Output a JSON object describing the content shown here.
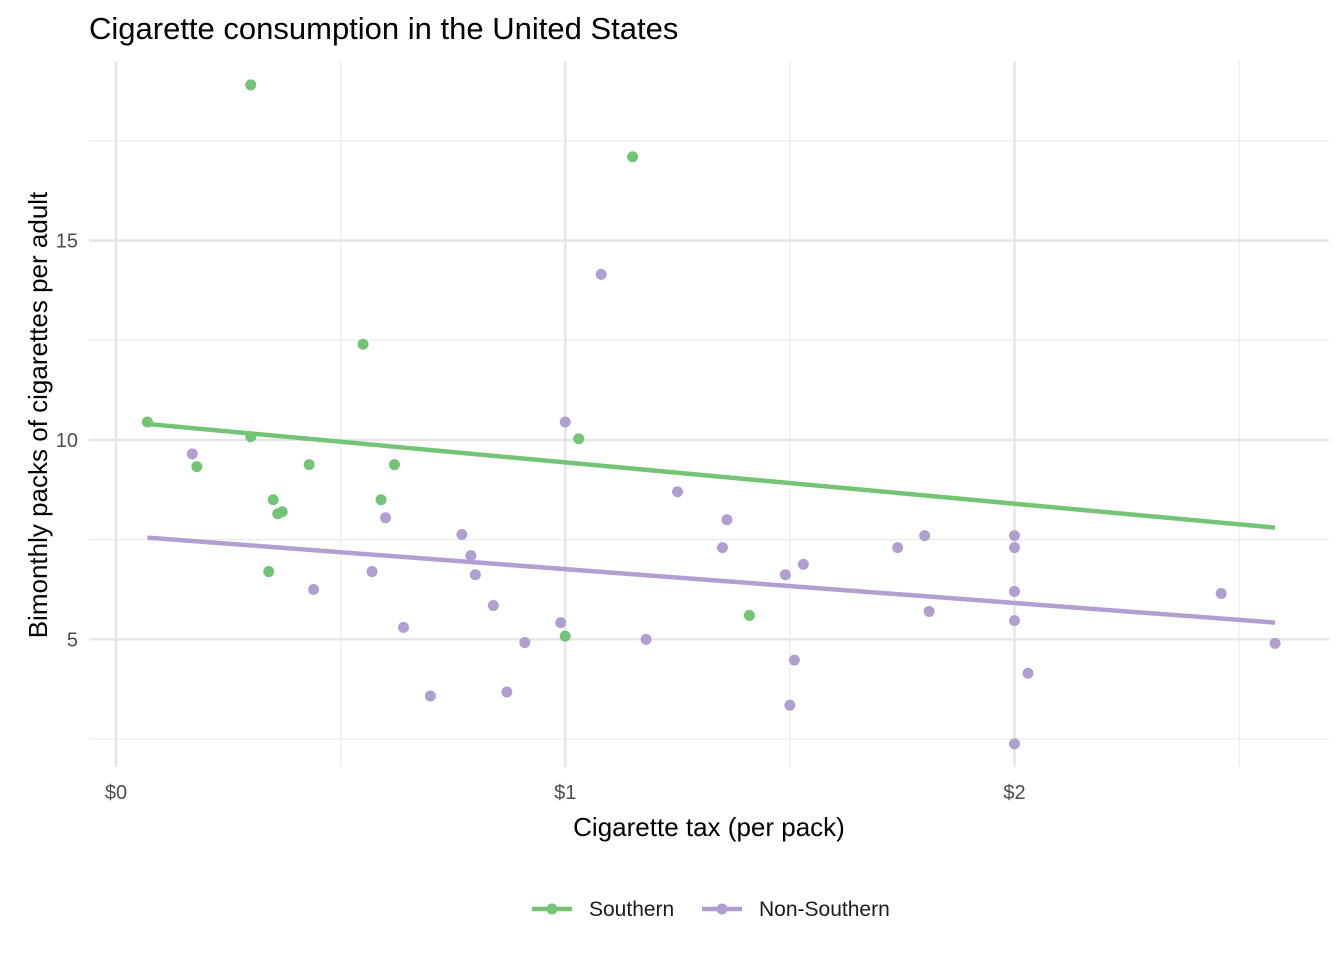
{
  "chart_data": {
    "type": "scatter",
    "title": "Cigarette consumption in the United States",
    "xlabel": "Cigarette tax (per pack)",
    "ylabel": "Bimonthly packs of cigarettes per adult",
    "xlim": [
      -0.06,
      2.7
    ],
    "ylim": [
      1.8,
      19.5
    ],
    "x_ticks": [
      0,
      1,
      2
    ],
    "x_tick_labels": [
      "$0",
      "$1",
      "$2"
    ],
    "x_minor_ticks": [
      0.5,
      1.5,
      2.5
    ],
    "y_ticks": [
      5,
      10,
      15
    ],
    "y_tick_labels": [
      "5",
      "10",
      "15"
    ],
    "y_minor_ticks": [
      2.5,
      7.5,
      12.5,
      17.5
    ],
    "grid": true,
    "legend_position": "bottom",
    "series": [
      {
        "name": "Southern",
        "color": "#74c476",
        "points": [
          [
            0.07,
            10.45
          ],
          [
            0.18,
            9.33
          ],
          [
            0.3,
            18.9
          ],
          [
            0.3,
            10.08
          ],
          [
            0.34,
            6.7
          ],
          [
            0.35,
            8.5
          ],
          [
            0.36,
            8.15
          ],
          [
            0.37,
            8.2
          ],
          [
            0.43,
            9.38
          ],
          [
            0.55,
            12.4
          ],
          [
            0.59,
            8.5
          ],
          [
            0.62,
            9.38
          ],
          [
            1.0,
            5.08
          ],
          [
            1.03,
            10.03
          ],
          [
            1.15,
            17.1
          ],
          [
            1.41,
            5.6
          ]
        ],
        "fit": [
          [
            0.07,
            10.4
          ],
          [
            2.58,
            7.8
          ]
        ]
      },
      {
        "name": "Non-Southern",
        "color": "#b09fd0",
        "points": [
          [
            0.17,
            9.65
          ],
          [
            0.44,
            6.25
          ],
          [
            0.57,
            6.7
          ],
          [
            0.6,
            8.05
          ],
          [
            0.64,
            5.3
          ],
          [
            0.7,
            3.58
          ],
          [
            0.77,
            7.63
          ],
          [
            0.79,
            7.1
          ],
          [
            0.8,
            6.62
          ],
          [
            0.84,
            5.85
          ],
          [
            0.87,
            3.68
          ],
          [
            0.91,
            4.92
          ],
          [
            0.99,
            5.42
          ],
          [
            1.0,
            10.45
          ],
          [
            1.08,
            14.15
          ],
          [
            1.18,
            5.0
          ],
          [
            1.25,
            8.7
          ],
          [
            1.35,
            7.3
          ],
          [
            1.36,
            8.0
          ],
          [
            1.49,
            6.62
          ],
          [
            1.51,
            4.48
          ],
          [
            1.5,
            3.35
          ],
          [
            1.53,
            6.88
          ],
          [
            1.74,
            7.3
          ],
          [
            1.8,
            7.6
          ],
          [
            1.81,
            5.7
          ],
          [
            2.0,
            7.6
          ],
          [
            2.0,
            7.3
          ],
          [
            2.0,
            6.2
          ],
          [
            2.0,
            5.47
          ],
          [
            2.0,
            2.38
          ],
          [
            2.03,
            4.15
          ],
          [
            2.46,
            6.15
          ],
          [
            2.58,
            4.9
          ]
        ],
        "fit": [
          [
            0.07,
            7.55
          ],
          [
            2.58,
            5.42
          ]
        ]
      }
    ]
  }
}
